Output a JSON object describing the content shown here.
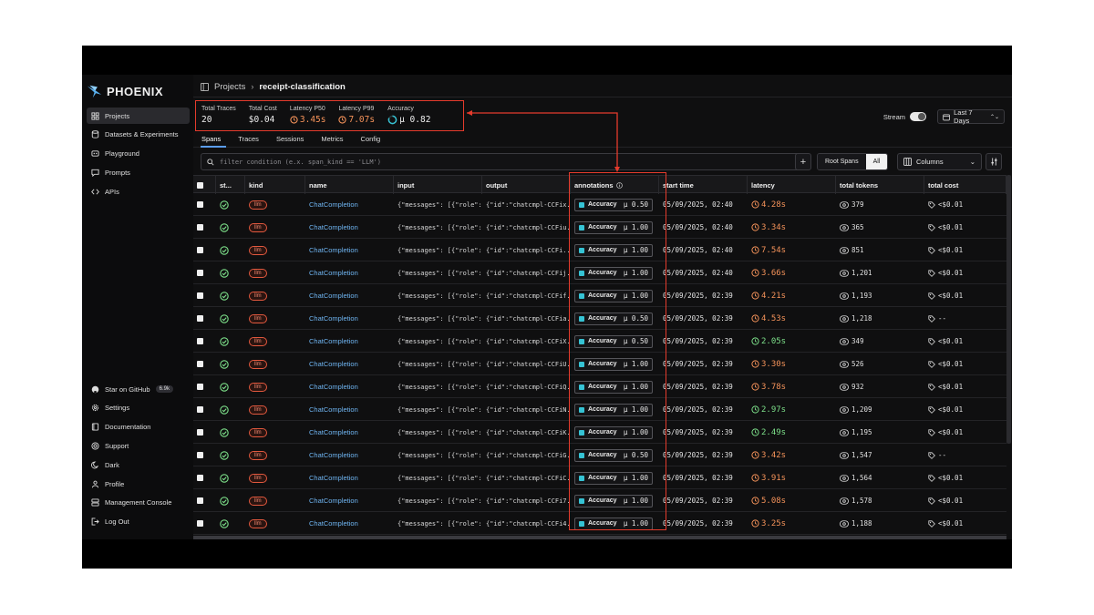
{
  "app": {
    "name": "PHOENIX"
  },
  "sidebar": {
    "top_items": [
      {
        "label": "Projects",
        "icon": "grid-icon",
        "active": true
      },
      {
        "label": "Datasets & Experiments",
        "icon": "database-icon",
        "active": false
      },
      {
        "label": "Playground",
        "icon": "playground-icon",
        "active": false
      },
      {
        "label": "Prompts",
        "icon": "chat-bubble-icon",
        "active": false
      },
      {
        "label": "APIs",
        "icon": "code-icon",
        "active": false
      }
    ],
    "bottom_items": [
      {
        "label": "Star on GitHub",
        "icon": "github-icon",
        "badge": "6.9k"
      },
      {
        "label": "Settings",
        "icon": "gear-icon"
      },
      {
        "label": "Documentation",
        "icon": "book-icon"
      },
      {
        "label": "Support",
        "icon": "lifebuoy-icon"
      },
      {
        "label": "Dark",
        "icon": "moon-icon"
      },
      {
        "label": "Profile",
        "icon": "person-icon"
      },
      {
        "label": "Management Console",
        "icon": "server-icon"
      },
      {
        "label": "Log Out",
        "icon": "logout-icon"
      }
    ]
  },
  "breadcrumb": {
    "root": "Projects",
    "current": "receipt-classification"
  },
  "stats": [
    {
      "label": "Total Traces",
      "value": "20"
    },
    {
      "label": "Total Cost",
      "value": "$0.04"
    },
    {
      "label": "Latency P50",
      "value": "3.45s"
    },
    {
      "label": "Latency P99",
      "value": "7.07s"
    },
    {
      "label": "Accuracy",
      "value": "μ 0.82",
      "fraction": 0.82
    }
  ],
  "stream": {
    "label": "Stream",
    "on": true
  },
  "time_range": {
    "label": "Last 7 Days"
  },
  "tabs": [
    "Spans",
    "Traces",
    "Sessions",
    "Metrics",
    "Config"
  ],
  "filter": {
    "placeholder": "filter condition (e.x. span_kind == 'LLM')"
  },
  "root_spans": {
    "options": [
      "Root Spans",
      "All"
    ],
    "selected": "All"
  },
  "columns_button": {
    "label": "Columns"
  },
  "table": {
    "headers": [
      "st...",
      "kind",
      "name",
      "input",
      "output",
      "annotations",
      "start time",
      "latency",
      "total tokens",
      "total cost"
    ],
    "rows": [
      {
        "kind": "llm",
        "name": "ChatCompletion",
        "input": "{\"messages\": [{\"role\": ...",
        "output": "{\"id\":\"chatcmpl-CCFix...",
        "annotation": "Accuracy",
        "score": "μ 0.50",
        "start": "05/09/2025, 02:40",
        "latency": "4.28s",
        "lat_color": "orange",
        "tokens": "379",
        "cost": "<$0.01"
      },
      {
        "kind": "llm",
        "name": "ChatCompletion",
        "input": "{\"messages\": [{\"role\": ...",
        "output": "{\"id\":\"chatcmpl-CCFiu...",
        "annotation": "Accuracy",
        "score": "μ 1.00",
        "start": "05/09/2025, 02:40",
        "latency": "3.34s",
        "lat_color": "orange",
        "tokens": "365",
        "cost": "<$0.01"
      },
      {
        "kind": "llm",
        "name": "ChatCompletion",
        "input": "{\"messages\": [{\"role\": ...",
        "output": "{\"id\":\"chatcmpl-CCFi...",
        "annotation": "Accuracy",
        "score": "μ 1.00",
        "start": "05/09/2025, 02:40",
        "latency": "7.54s",
        "lat_color": "orange",
        "tokens": "851",
        "cost": "<$0.01"
      },
      {
        "kind": "llm",
        "name": "ChatCompletion",
        "input": "{\"messages\": [{\"role\": ...",
        "output": "{\"id\":\"chatcmpl-CCFij...",
        "annotation": "Accuracy",
        "score": "μ 1.00",
        "start": "05/09/2025, 02:40",
        "latency": "3.66s",
        "lat_color": "orange",
        "tokens": "1,201",
        "cost": "<$0.01"
      },
      {
        "kind": "llm",
        "name": "ChatCompletion",
        "input": "{\"messages\": [{\"role\": ...",
        "output": "{\"id\":\"chatcmpl-CCFif...",
        "annotation": "Accuracy",
        "score": "μ 1.00",
        "start": "05/09/2025, 02:39",
        "latency": "4.21s",
        "lat_color": "orange",
        "tokens": "1,193",
        "cost": "<$0.01"
      },
      {
        "kind": "llm",
        "name": "ChatCompletion",
        "input": "{\"messages\": [{\"role\": ...",
        "output": "{\"id\":\"chatcmpl-CCFia...",
        "annotation": "Accuracy",
        "score": "μ 0.50",
        "start": "05/09/2025, 02:39",
        "latency": "4.53s",
        "lat_color": "orange",
        "tokens": "1,218",
        "cost": "--"
      },
      {
        "kind": "llm",
        "name": "ChatCompletion",
        "input": "{\"messages\": [{\"role\": ...",
        "output": "{\"id\":\"chatcmpl-CCFiX...",
        "annotation": "Accuracy",
        "score": "μ 0.50",
        "start": "05/09/2025, 02:39",
        "latency": "2.05s",
        "lat_color": "green",
        "tokens": "349",
        "cost": "<$0.01"
      },
      {
        "kind": "llm",
        "name": "ChatCompletion",
        "input": "{\"messages\": [{\"role\": ...",
        "output": "{\"id\":\"chatcmpl-CCFiU...",
        "annotation": "Accuracy",
        "score": "μ 1.00",
        "start": "05/09/2025, 02:39",
        "latency": "3.30s",
        "lat_color": "orange",
        "tokens": "526",
        "cost": "<$0.01"
      },
      {
        "kind": "llm",
        "name": "ChatCompletion",
        "input": "{\"messages\": [{\"role\": ...",
        "output": "{\"id\":\"chatcmpl-CCFiQ...",
        "annotation": "Accuracy",
        "score": "μ 1.00",
        "start": "05/09/2025, 02:39",
        "latency": "3.78s",
        "lat_color": "orange",
        "tokens": "932",
        "cost": "<$0.01"
      },
      {
        "kind": "llm",
        "name": "ChatCompletion",
        "input": "{\"messages\": [{\"role\": ...",
        "output": "{\"id\":\"chatcmpl-CCFiN...",
        "annotation": "Accuracy",
        "score": "μ 1.00",
        "start": "05/09/2025, 02:39",
        "latency": "2.97s",
        "lat_color": "green",
        "tokens": "1,209",
        "cost": "<$0.01"
      },
      {
        "kind": "llm",
        "name": "ChatCompletion",
        "input": "{\"messages\": [{\"role\": ...",
        "output": "{\"id\":\"chatcmpl-CCFiK...",
        "annotation": "Accuracy",
        "score": "μ 1.00",
        "start": "05/09/2025, 02:39",
        "latency": "2.49s",
        "lat_color": "green",
        "tokens": "1,195",
        "cost": "<$0.01"
      },
      {
        "kind": "llm",
        "name": "ChatCompletion",
        "input": "{\"messages\": [{\"role\": ...",
        "output": "{\"id\":\"chatcmpl-CCFiG...",
        "annotation": "Accuracy",
        "score": "μ 0.50",
        "start": "05/09/2025, 02:39",
        "latency": "3.42s",
        "lat_color": "orange",
        "tokens": "1,547",
        "cost": "--"
      },
      {
        "kind": "llm",
        "name": "ChatCompletion",
        "input": "{\"messages\": [{\"role\": ...",
        "output": "{\"id\":\"chatcmpl-CCFiC...",
        "annotation": "Accuracy",
        "score": "μ 1.00",
        "start": "05/09/2025, 02:39",
        "latency": "3.91s",
        "lat_color": "orange",
        "tokens": "1,564",
        "cost": "<$0.01"
      },
      {
        "kind": "llm",
        "name": "ChatCompletion",
        "input": "{\"messages\": [{\"role\": ...",
        "output": "{\"id\":\"chatcmpl-CCFi7...",
        "annotation": "Accuracy",
        "score": "μ 1.00",
        "start": "05/09/2025, 02:39",
        "latency": "5.08s",
        "lat_color": "orange",
        "tokens": "1,578",
        "cost": "<$0.01"
      },
      {
        "kind": "llm",
        "name": "ChatCompletion",
        "input": "{\"messages\": [{\"role\": ...",
        "output": "{\"id\":\"chatcmpl-CCFi4...",
        "annotation": "Accuracy",
        "score": "μ 1.00",
        "start": "05/09/2025, 02:39",
        "latency": "3.25s",
        "lat_color": "orange",
        "tokens": "1,188",
        "cost": "<$0.01"
      }
    ]
  },
  "colors": {
    "accent_red": "#e53b2c",
    "link_blue": "#6fb5f2",
    "latency_orange": "#f5935a",
    "latency_green": "#7de08a",
    "annotation_teal": "#36c3d4"
  }
}
